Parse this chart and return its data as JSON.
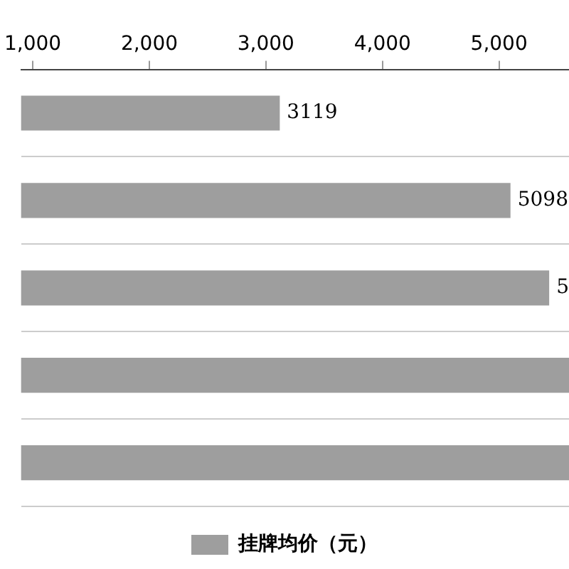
{
  "chart_data": {
    "type": "bar",
    "orientation": "horizontal",
    "categories": [
      null,
      null,
      null,
      null,
      null
    ],
    "series": [
      {
        "name": "挂牌均价（元）",
        "color": "#9e9e9e",
        "values": [
          3119,
          5098,
          5430,
          5600,
          5600
        ]
      }
    ],
    "value_labels": [
      "3119",
      "5098",
      "5",
      null,
      null
    ],
    "xlim": [
      900,
      5600
    ],
    "xticks": [
      {
        "value": 1000,
        "label": "1,000"
      },
      {
        "value": 2000,
        "label": "2,000"
      },
      {
        "value": 3000,
        "label": "3,000"
      },
      {
        "value": 4000,
        "label": "4,000"
      },
      {
        "value": 5000,
        "label": "5,000"
      }
    ],
    "tick_labels": "x",
    "grid": "y",
    "legend": "bottom"
  }
}
